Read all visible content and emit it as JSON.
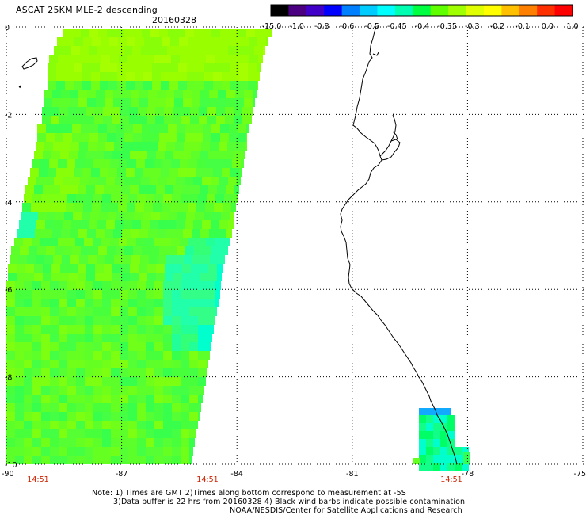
{
  "header": {
    "title": "ASCAT 25KM MLE-2 descending",
    "date": "20160328"
  },
  "colorbar": {
    "labels": [
      "-15.0",
      "-1.0",
      "-0.8",
      "-0.6",
      "-0.5",
      "-0.45",
      "-0.4",
      "-0.35",
      "-0.3",
      "-0.2",
      "-0.1",
      "0.0",
      "1.0"
    ],
    "colors": [
      "#000000",
      "#4b0082",
      "#4000c8",
      "#0000ff",
      "#007fff",
      "#00ccff",
      "#00ffff",
      "#00ffb0",
      "#00ff40",
      "#60ff00",
      "#a0ff00",
      "#e0ff00",
      "#ffff00",
      "#ffc000",
      "#ff8000",
      "#ff3000",
      "#ff0000"
    ]
  },
  "axes": {
    "lat_ticks": [
      "0",
      "-2",
      "-4",
      "-6",
      "-8",
      "-10"
    ],
    "lon_ticks": [
      "-90",
      "-87",
      "-84",
      "-81",
      "-78",
      "-75"
    ],
    "time_labels": [
      "14:51",
      "14:51",
      "14:51"
    ],
    "time_color": "#cc2200"
  },
  "notes": {
    "line1": "Note: 1) Times are GMT 2)Times along bottom correspond to measurement at -5S",
    "line2": "3)Data buffer is 22 hrs from 20160328 4) Black wind barbs indicate possible contamination",
    "line3": "NOAA/NESDIS/Center for Satellite Applications and Research"
  }
}
